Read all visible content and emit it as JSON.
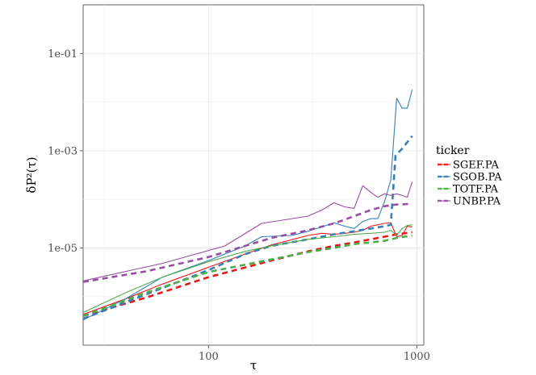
{
  "chart_data": {
    "type": "line",
    "xlabel": "τ",
    "ylabel": "δP²(τ)",
    "xscale": "log",
    "yscale": "log",
    "xlim": [
      25,
      1080
    ],
    "ylim": [
      1e-07,
      1.0
    ],
    "x_ticks": [
      {
        "value": 100,
        "label": "100"
      },
      {
        "value": 1000,
        "label": "1000"
      }
    ],
    "y_ticks": [
      {
        "value": 1e-05,
        "label": "1e-05"
      },
      {
        "value": 0.001,
        "label": "1e-03"
      },
      {
        "value": 0.1,
        "label": "1e-01"
      }
    ],
    "grid": true,
    "legend": {
      "title": "ticker",
      "position": "right",
      "entries": [
        "SGEF.PA",
        "SGOB.PA",
        "TOTF.PA",
        "UNBP.PA"
      ]
    },
    "series": [
      {
        "name": "SGEF.PA",
        "color": "#E41A1C",
        "style": "solid",
        "x": [
          25,
          40,
          60,
          100,
          150,
          200,
          300,
          350,
          400,
          450,
          500,
          550,
          600,
          650,
          700,
          750,
          800,
          850,
          900,
          950
        ],
        "y": [
          4.3e-07,
          9e-07,
          1.8e-06,
          4e-06,
          7.5e-06,
          1.15e-05,
          1.8e-05,
          2e-05,
          1.9e-05,
          2e-05,
          2.1e-05,
          2.3e-05,
          2.8e-05,
          3e-05,
          3.2e-05,
          3.3e-05,
          1.7e-05,
          1.8e-05,
          2.8e-05,
          2.7e-05
        ]
      },
      {
        "name": "SGEF.PA",
        "color": "#E41A1C",
        "style": "dashed",
        "x": [
          25,
          50,
          100,
          200,
          300,
          400,
          500,
          600,
          700,
          800,
          950
        ],
        "y": [
          4e-07,
          9.5e-07,
          2.5e-06,
          5.5e-06,
          8.5e-06,
          1.1e-05,
          1.3e-05,
          1.5e-05,
          1.7e-05,
          1.9e-05,
          2.1e-05
        ]
      },
      {
        "name": "SGOB.PA",
        "color": "#377EB8",
        "style": "solid",
        "x": [
          25,
          40,
          60,
          100,
          150,
          180,
          250,
          300,
          350,
          400,
          450,
          500,
          550,
          600,
          650,
          700,
          750,
          800,
          850,
          900,
          950
        ],
        "y": [
          3.3e-07,
          9e-07,
          2.5e-06,
          5.5e-06,
          1.1e-05,
          1.7e-05,
          1.8e-05,
          2.2e-05,
          2.7e-05,
          3.3e-05,
          2.8e-05,
          2.5e-05,
          3.5e-05,
          4e-05,
          4e-05,
          9e-05,
          0.00025,
          0.012,
          0.0075,
          0.0075,
          0.018
        ]
      },
      {
        "name": "SGOB.PA",
        "color": "#377EB8",
        "style": "dashed",
        "x": [
          25,
          50,
          100,
          150,
          200,
          300,
          400,
          500,
          600,
          700,
          750,
          790,
          850,
          900,
          950
        ],
        "y": [
          3.5e-07,
          1.1e-06,
          3.5e-06,
          7.5e-06,
          1.1e-05,
          1.5e-05,
          1.9e-05,
          2.2e-05,
          2.5e-05,
          2.8e-05,
          3e-05,
          0.0008,
          0.0011,
          0.0015,
          0.002
        ]
      },
      {
        "name": "TOTF.PA",
        "color": "#4DAF4A",
        "style": "solid",
        "x": [
          25,
          40,
          60,
          100,
          150,
          200,
          250,
          300,
          400,
          500,
          600,
          700,
          750,
          800,
          850,
          900,
          950
        ],
        "y": [
          4.7e-07,
          1.2e-06,
          2.5e-06,
          5.2e-06,
          8.5e-06,
          1.1e-05,
          1.3e-05,
          1.5e-05,
          1.7e-05,
          1.9e-05,
          2e-05,
          2.1e-05,
          2.3e-05,
          1.8e-05,
          2.5e-05,
          2.9e-05,
          3e-05
        ]
      },
      {
        "name": "TOTF.PA",
        "color": "#4DAF4A",
        "style": "dashed",
        "x": [
          25,
          50,
          100,
          200,
          300,
          400,
          500,
          600,
          700,
          800,
          950
        ],
        "y": [
          4e-07,
          1.2e-06,
          3.2e-06,
          5.8e-06,
          8.2e-06,
          1e-05,
          1.2e-05,
          1.3e-05,
          1.4e-05,
          1.6e-05,
          1.8e-05
        ]
      },
      {
        "name": "UNBP.PA",
        "color": "#984EA3",
        "style": "solid",
        "x": [
          25,
          60,
          120,
          180,
          300,
          350,
          400,
          450,
          500,
          550,
          600,
          650,
          700,
          750,
          800,
          850,
          900,
          950
        ],
        "y": [
          2.1e-06,
          4.8e-06,
          1.1e-05,
          3.2e-05,
          4.5e-05,
          6e-05,
          8.5e-05,
          7e-05,
          6.5e-05,
          0.00019,
          0.00014,
          0.00011,
          0.00013,
          0.00012,
          0.00013,
          0.00012,
          0.00011,
          0.00023
        ]
      },
      {
        "name": "UNBP.PA",
        "color": "#984EA3",
        "style": "dashed",
        "x": [
          25,
          50,
          100,
          150,
          200,
          300,
          400,
          450,
          500,
          600,
          700,
          800,
          900,
          950
        ],
        "y": [
          2e-06,
          3.3e-06,
          6.5e-06,
          1.1e-05,
          1.6e-05,
          2.3e-05,
          3.2e-05,
          3.8e-05,
          4.5e-05,
          6e-05,
          7.2e-05,
          7.8e-05,
          8e-05,
          8e-05
        ]
      }
    ]
  }
}
